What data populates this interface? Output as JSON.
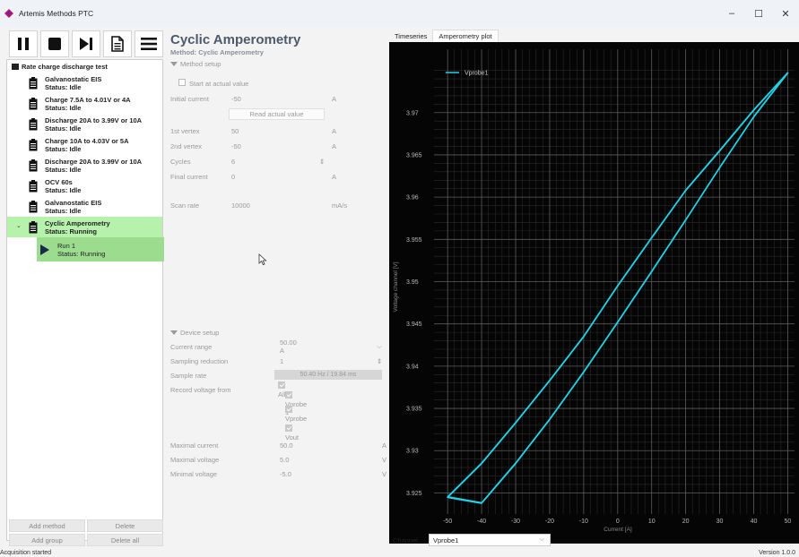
{
  "window": {
    "title": "Artemis Methods PTC",
    "controls": [
      "–",
      "☐",
      "✕"
    ]
  },
  "toolbar": {
    "buttons": [
      "pause",
      "stop",
      "skip",
      "document",
      "menu"
    ]
  },
  "tree": {
    "root": "Rate charge discharge test",
    "items": [
      {
        "name": "Galvanostatic EIS",
        "status": "Status: Idle"
      },
      {
        "name": "Charge 7.5A to 4.01V or 4A",
        "status": "Status: Idle"
      },
      {
        "name": "Discharge 20A to 3.99V or 10A",
        "status": "Status: Idle"
      },
      {
        "name": "Charge 10A to 4.03V or 5A",
        "status": "Status: Idle"
      },
      {
        "name": "Discharge 20A to 3.99V or 10A",
        "status": "Status: Idle"
      },
      {
        "name": "OCV 60s",
        "status": "Status: Idle"
      },
      {
        "name": "Galvanostatic EIS",
        "status": "Status: Idle"
      },
      {
        "name": "Cyclic Amperometry",
        "status": "Status: Running"
      }
    ],
    "run": {
      "name": "Run 1",
      "status": "Status: Running"
    }
  },
  "buttons": {
    "add_method": "Add method",
    "delete": "Delete",
    "add_group": "Add group",
    "delete_all": "Delete all"
  },
  "status": {
    "left": "Acquisition started",
    "right": "Version 1.0.0"
  },
  "method": {
    "title": "Cyclic Amperometry",
    "subtitle": "Method: Cyclic Amperometry",
    "setup_header": "Method setup",
    "start_actual": "Start at actual value",
    "initial_current": {
      "label": "Initial current",
      "value": "-50",
      "unit": "A"
    },
    "read_button": "Read actual value",
    "vertex1": {
      "label": "1st vertex",
      "value": "50",
      "unit": "A"
    },
    "vertex2": {
      "label": "2nd vertex",
      "value": "-50",
      "unit": "A"
    },
    "cycles": {
      "label": "Cycles",
      "value": "6"
    },
    "final_current": {
      "label": "Final current",
      "value": "0",
      "unit": "A"
    },
    "scan_rate": {
      "label": "Scan rate",
      "value": "10000",
      "unit": "mA/s"
    }
  },
  "device": {
    "header": "Device setup",
    "current_range": {
      "label": "Current range",
      "value": "50.00 A"
    },
    "sampling_reduction": {
      "label": "Sampling reduction",
      "value": "1"
    },
    "sample_rate": {
      "label": "Sample rate",
      "value": "50.40 Hz / 19.84 ms"
    },
    "record_voltage": {
      "label": "Record voltage from",
      "options": [
        "All",
        "Vprobe 1",
        "Vprobe 2",
        "Vout"
      ]
    },
    "max_current": {
      "label": "Maximal current",
      "value": "50.0",
      "unit": "A"
    },
    "max_voltage": {
      "label": "Maximal voltage",
      "value": "5.0",
      "unit": "V"
    },
    "min_voltage": {
      "label": "Minimal voltage",
      "value": "-5.0",
      "unit": "V"
    }
  },
  "plot": {
    "tabs": [
      "Timeseries",
      "Amperometry plot"
    ],
    "channel_label": "Channel",
    "channel_value": "Vprobe1"
  },
  "chart_data": {
    "type": "line",
    "xlabel": "Current [A]",
    "ylabel": "Voltage channel [V]",
    "xlim": [
      -54,
      52
    ],
    "ylim": [
      3.9225,
      3.9775
    ],
    "xticks": [
      -50,
      -40,
      -30,
      -20,
      -10,
      0,
      10,
      20,
      30,
      40,
      50
    ],
    "yticks": [
      3.925,
      3.93,
      3.935,
      3.94,
      3.945,
      3.95,
      3.955,
      3.96,
      3.965,
      3.97
    ],
    "ytick_labels": [
      "3.925",
      "3.93",
      "3.935",
      "3.94",
      "3.945",
      "3.95",
      "3.955",
      "3.96",
      "3.965",
      "3.97"
    ],
    "grid": true,
    "legend": "top-left",
    "series": [
      {
        "name": "Vprobe1",
        "color": "#22d3e8",
        "branch_up": {
          "x": [
            -50,
            -40,
            -30,
            -20,
            -10,
            0,
            10,
            20,
            30,
            40,
            50
          ],
          "y": [
            3.9245,
            3.9285,
            3.9333,
            3.9383,
            3.9435,
            3.9495,
            3.9552,
            3.9608,
            3.9655,
            3.9703,
            3.9747
          ]
        },
        "branch_down": {
          "x": [
            50,
            40,
            30,
            20,
            10,
            0,
            -10,
            -20,
            -30,
            -40,
            -50
          ],
          "y": [
            3.9747,
            3.9695,
            3.9635,
            3.9573,
            3.9512,
            3.9452,
            3.9393,
            3.9337,
            3.9285,
            3.9238,
            3.9245
          ]
        }
      }
    ]
  }
}
